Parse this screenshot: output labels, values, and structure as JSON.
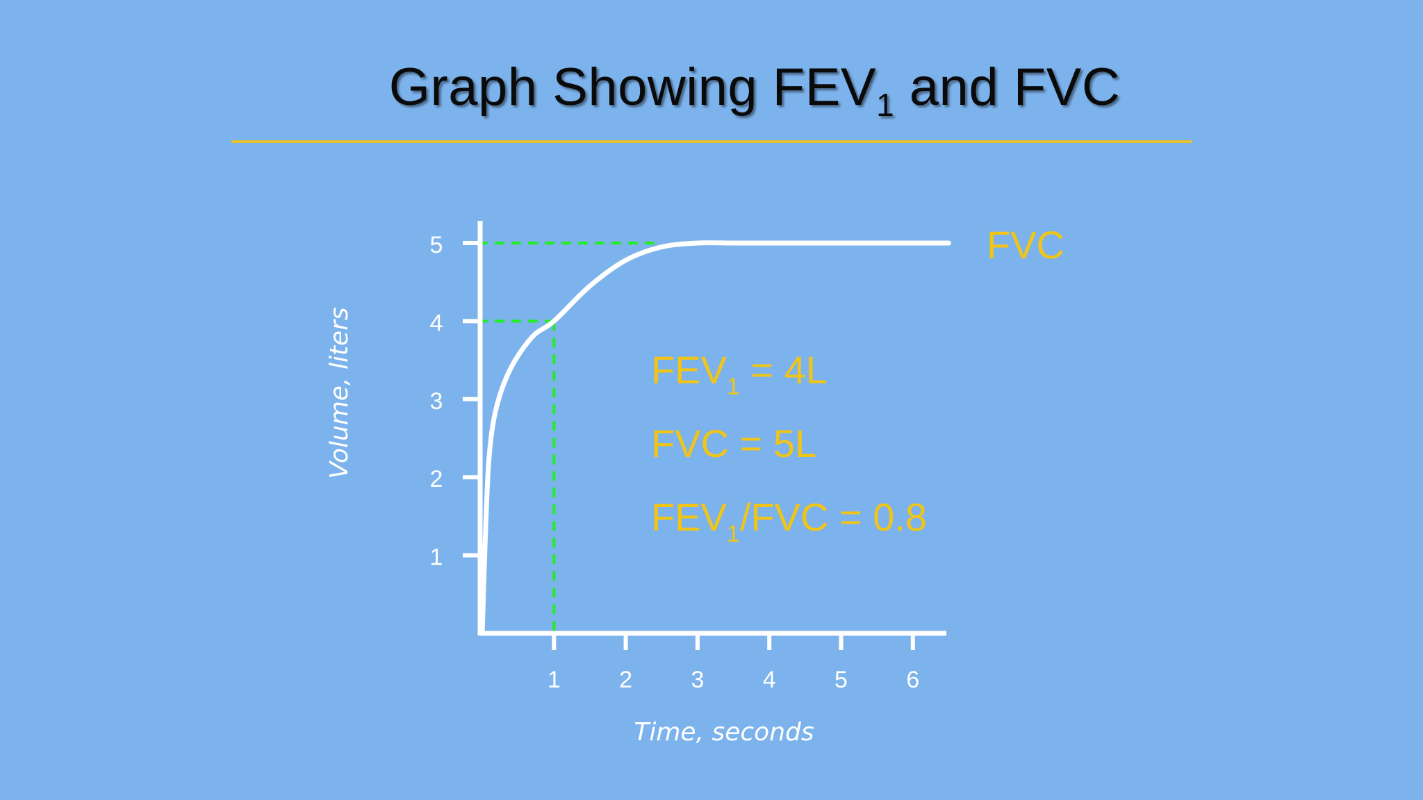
{
  "slide": {
    "title_main": "Graph Showing FEV",
    "title_sub": "1",
    "title_tail": " and FVC"
  },
  "colors": {
    "background": "#7db3ec",
    "title_rule": "#e6c22e",
    "curve": "#ffffff",
    "guide": "#22ee22",
    "annotation": "#f1c418"
  },
  "chart_data": {
    "type": "line",
    "title": "Graph Showing FEV1 and FVC",
    "xlabel": "Time, seconds",
    "ylabel": "Volume, liters",
    "xlim": [
      0,
      6.5
    ],
    "ylim": [
      0,
      5
    ],
    "x_ticks": [
      1,
      2,
      3,
      4,
      5,
      6
    ],
    "y_ticks": [
      1,
      2,
      3,
      4,
      5
    ],
    "grid": false,
    "series": [
      {
        "x": [
          0,
          0.05,
          0.1,
          0.2,
          0.4,
          0.7,
          1.0,
          1.5,
          2.0,
          2.5,
          3.0,
          3.5,
          4.0,
          5.0,
          6.0,
          6.5
        ],
        "y": [
          0,
          1.4,
          2.3,
          2.9,
          3.4,
          3.8,
          4.0,
          4.45,
          4.78,
          4.95,
          5.0,
          5.0,
          5.0,
          5.0,
          5.0,
          5.0
        ]
      }
    ],
    "guides": [
      {
        "label": "FEV1",
        "x": 1,
        "y": 4
      },
      {
        "label": "FVC",
        "x": 2.4,
        "y": 5
      }
    ],
    "curve_label": "FVC",
    "annotations": [
      {
        "main": "FEV",
        "sub": "1",
        "tail": " = 4L"
      },
      {
        "main": "FVC  = 5L",
        "sub": "",
        "tail": ""
      },
      {
        "main": "FEV",
        "sub": "1",
        "tail": "/FVC = 0.8"
      }
    ]
  }
}
